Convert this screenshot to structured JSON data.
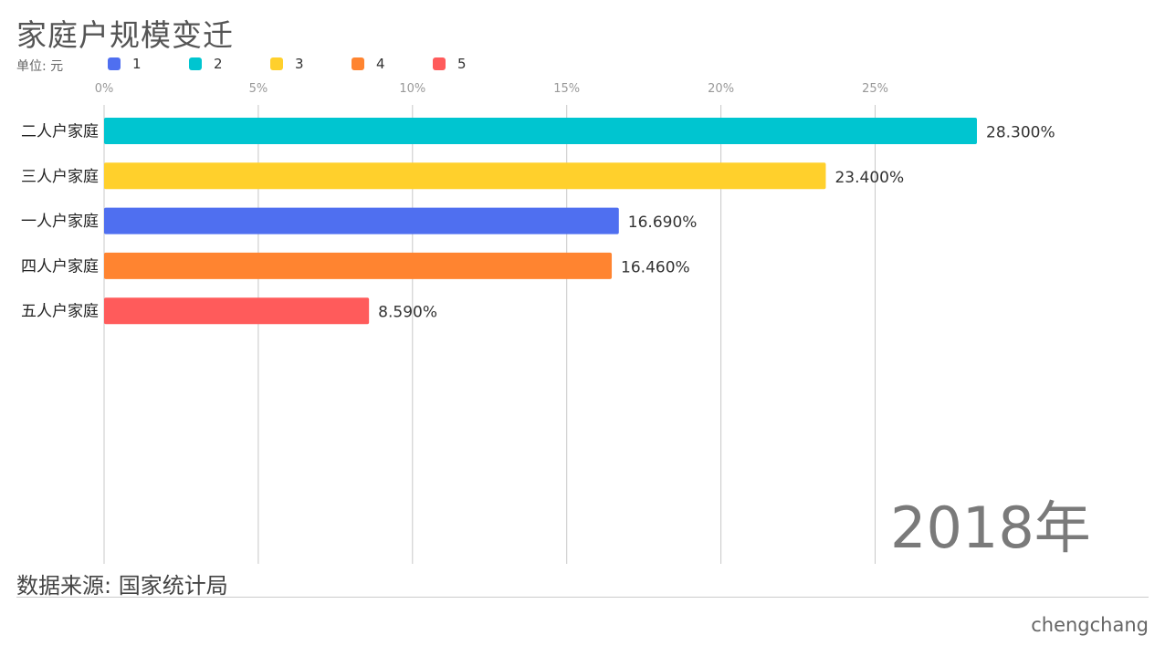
{
  "title": "家庭户规模变迁",
  "unit_label": "单位: 元",
  "legend": [
    {
      "label": "1",
      "color": "#4f6ff0"
    },
    {
      "label": "2",
      "color": "#00c5d0"
    },
    {
      "label": "3",
      "color": "#ffd02c"
    },
    {
      "label": "4",
      "color": "#ff8430"
    },
    {
      "label": "5",
      "color": "#ff5b5b"
    }
  ],
  "year_label": "2018年",
  "source": "数据来源: 国家统计局",
  "author": "chengchang",
  "chart_data": {
    "type": "bar",
    "orientation": "horizontal",
    "title": "家庭户规模变迁",
    "xlim": [
      0,
      28.3
    ],
    "ticks": [
      {
        "value": 0,
        "label": "0%"
      },
      {
        "value": 5,
        "label": "5%"
      },
      {
        "value": 10,
        "label": "10%"
      },
      {
        "value": 15,
        "label": "15%"
      },
      {
        "value": 20,
        "label": "20%"
      },
      {
        "value": 25,
        "label": "25%"
      }
    ],
    "grid": true,
    "categories": [
      "二人户家庭",
      "三人户家庭",
      "一人户家庭",
      "四人户家庭",
      "五人户家庭"
    ],
    "values": [
      28.3,
      23.4,
      16.69,
      16.46,
      8.59
    ],
    "value_labels": [
      "28.300%",
      "23.400%",
      "16.690%",
      "16.460%",
      "8.590%"
    ],
    "colors": [
      "#00c5d0",
      "#ffd02c",
      "#4f6ff0",
      "#ff8430",
      "#ff5b5b"
    ]
  }
}
